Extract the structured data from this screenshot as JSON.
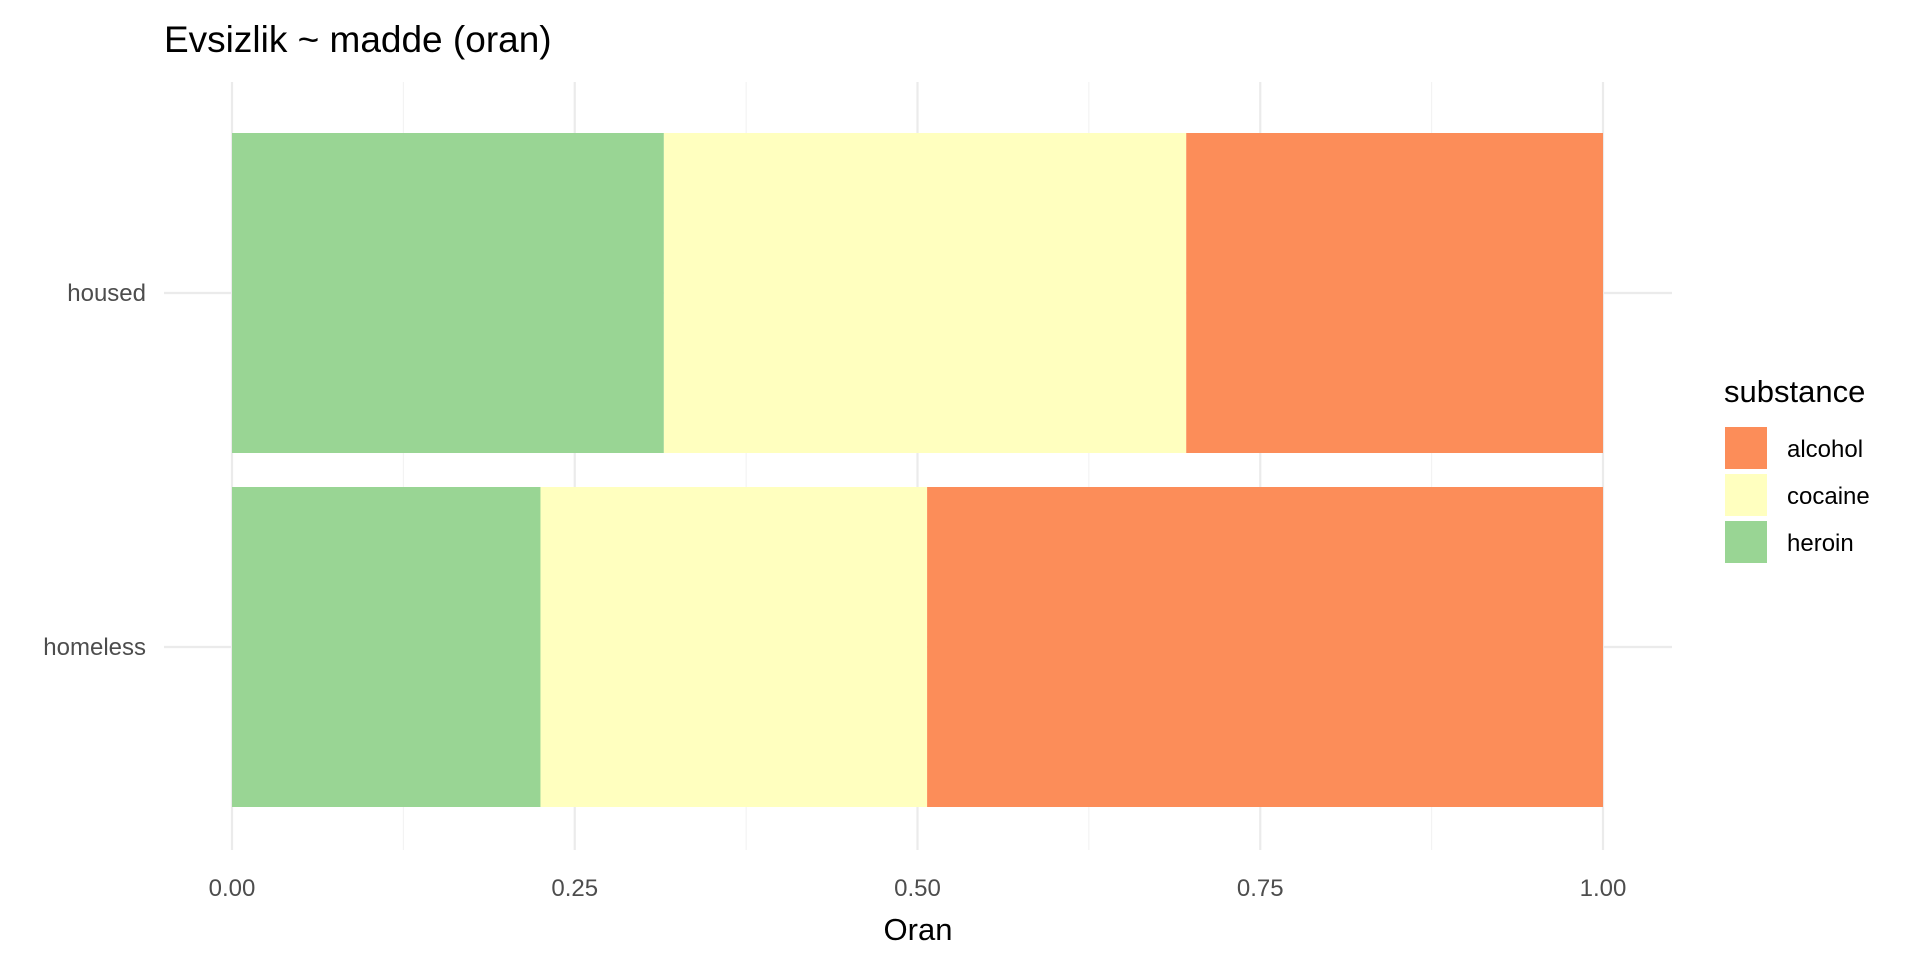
{
  "chart_data": {
    "type": "bar",
    "orientation": "horizontal",
    "stacked": true,
    "title": "Evsizlik ~ madde (oran)",
    "xlabel": "Oran",
    "ylabel": "",
    "xlim": [
      0,
      1
    ],
    "x_ticks": [
      "0.00",
      "0.25",
      "0.50",
      "0.75",
      "1.00"
    ],
    "categories": [
      "housed",
      "homeless"
    ],
    "stack_order": [
      "heroin",
      "cocaine",
      "alcohol"
    ],
    "series": [
      {
        "name": "alcohol",
        "color": "#FC8D59",
        "values": [
          0.304,
          0.493
        ]
      },
      {
        "name": "cocaine",
        "color": "#FFFFBF",
        "values": [
          0.381,
          0.282
        ]
      },
      {
        "name": "heroin",
        "color": "#99D594",
        "values": [
          0.315,
          0.225
        ]
      }
    ],
    "legend": {
      "title": "substance",
      "placement": "right"
    },
    "grid": true
  }
}
